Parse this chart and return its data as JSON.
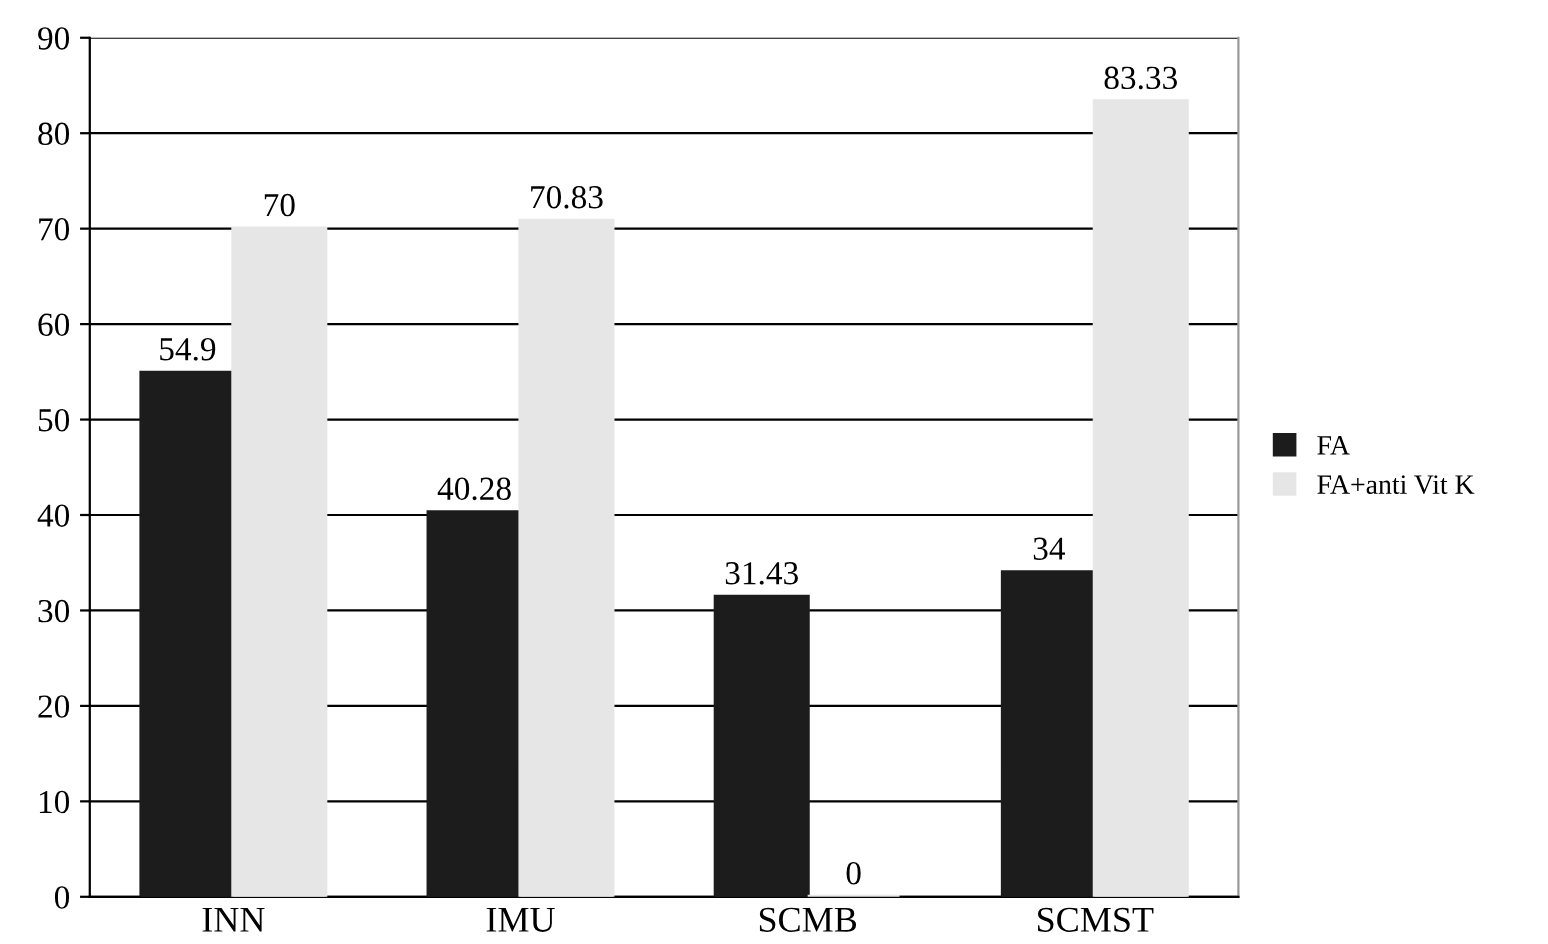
{
  "chart_data": {
    "type": "bar",
    "categories": [
      "INN",
      "IMU",
      "SCMB",
      "SCMST"
    ],
    "series": [
      {
        "name": "FA",
        "color": "#1c1c1c",
        "values": [
          54.9,
          40.28,
          31.43,
          34
        ]
      },
      {
        "name": "FA+anti Vit K",
        "color": "#e6e6e6",
        "values": [
          70,
          70.83,
          0,
          83.33
        ]
      }
    ],
    "ylim": [
      0,
      90
    ],
    "yticks": [
      0,
      10,
      20,
      30,
      40,
      50,
      60,
      70,
      80,
      90
    ],
    "grid": "y",
    "legend": "right",
    "data_labels": true
  }
}
